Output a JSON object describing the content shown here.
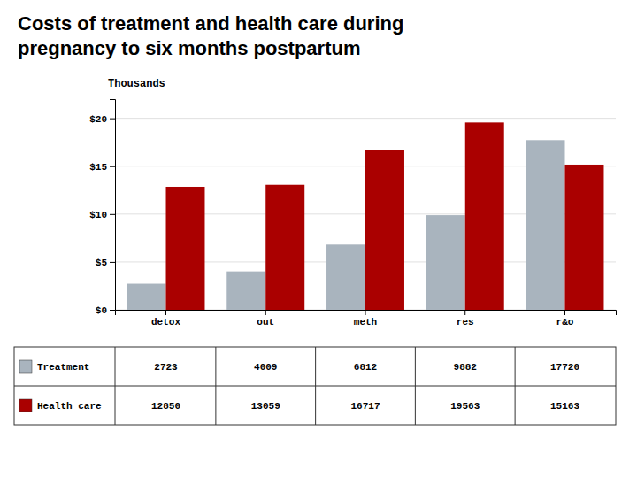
{
  "chart_data": {
    "type": "bar",
    "title": "Costs of treatment and health care during",
    "subtitle": "pregnancy to six months postpartum",
    "ylabel": "Thousands",
    "categories": [
      "detox",
      "out",
      "meth",
      "res",
      "r&o"
    ],
    "series": [
      {
        "name": "Treatment",
        "color": "#a9b4be",
        "values": [
          2.723,
          4.009,
          6.812,
          9.882,
          17.72
        ],
        "value_labels": [
          "2723",
          "4009",
          "6812",
          "9882",
          "17720"
        ]
      },
      {
        "name": "Health care",
        "color": "#aa0000",
        "values": [
          12.85,
          13.059,
          16.717,
          19.563,
          15.163
        ],
        "value_labels": [
          "12850",
          "13059",
          "16717",
          "19563",
          "15163"
        ]
      }
    ],
    "ylim": [
      0,
      22
    ],
    "yticks": [
      {
        "value": 0,
        "label": "$0"
      },
      {
        "value": 5,
        "label": "$5"
      },
      {
        "value": 10,
        "label": "$10"
      },
      {
        "value": 15,
        "label": "$15"
      },
      {
        "value": 20,
        "label": "$20"
      }
    ],
    "grid": true
  }
}
